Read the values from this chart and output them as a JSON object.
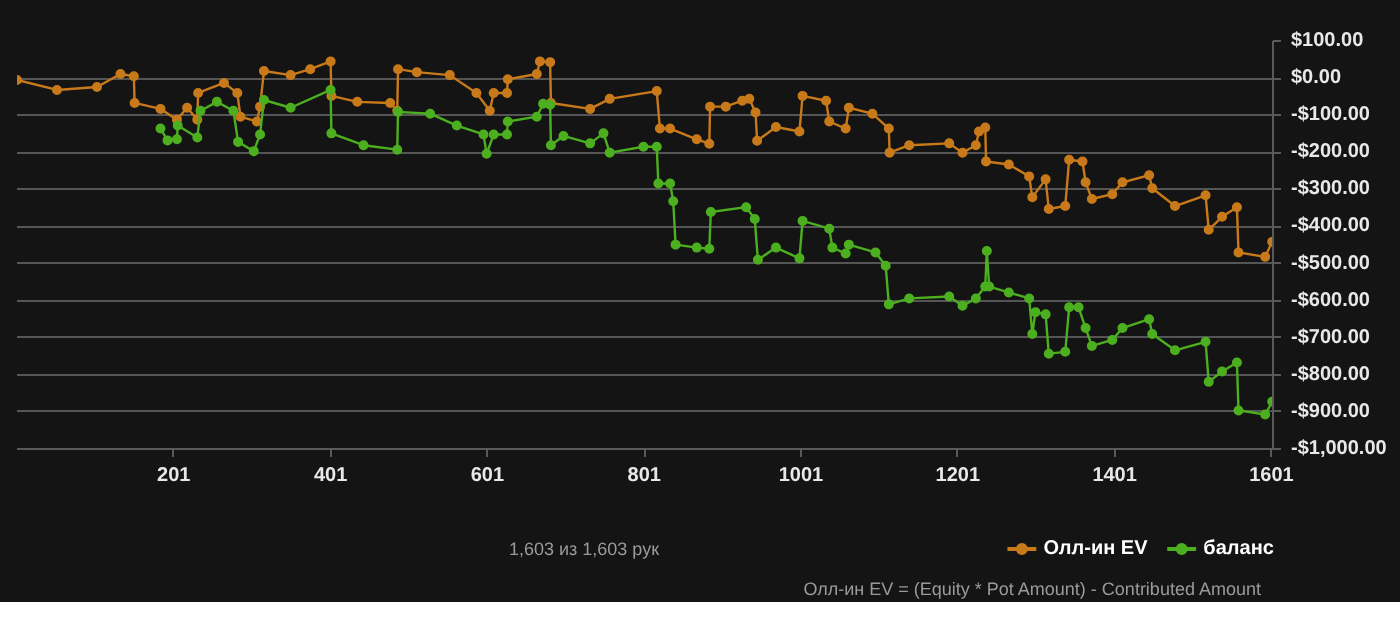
{
  "chart_data": {
    "type": "line",
    "marker": "circle",
    "legend": "bottom right",
    "grid": "y",
    "annotations": [
      "1,603 из 1,603 рук",
      "Олл-ин EV = (Equity * Pot Amount) - Contributed Amount"
    ],
    "xlim": [
      1,
      1603
    ],
    "xticks": [
      201,
      401,
      601,
      801,
      1001,
      1201,
      1401,
      1601
    ],
    "ylim": [
      -1000,
      100
    ],
    "yticks": [
      {
        "value": 100,
        "label": "$100.00"
      },
      {
        "value": 0,
        "label": "$0.00"
      },
      {
        "value": -100,
        "label": "-$100.00"
      },
      {
        "value": -200,
        "label": "-$200.00"
      },
      {
        "value": -300,
        "label": "-$300.00"
      },
      {
        "value": -400,
        "label": "-$400.00"
      },
      {
        "value": -500,
        "label": "-$500.00"
      },
      {
        "value": -600,
        "label": "-$600.00"
      },
      {
        "value": -700,
        "label": "-$700.00"
      },
      {
        "value": -800,
        "label": "-$800.00"
      },
      {
        "value": -900,
        "label": "-$900.00"
      },
      {
        "value": -1000,
        "label": "-$1,000.00"
      }
    ],
    "series": [
      {
        "name": "Олл-ин EV",
        "color": "#c87a1a",
        "x": [
          1,
          52,
          103,
          133,
          150,
          151,
          184,
          205,
          218,
          231,
          232,
          265,
          282,
          286,
          307,
          311,
          316,
          350,
          375,
          401,
          402,
          435,
          477,
          486,
          487,
          511,
          553,
          587,
          604,
          609,
          626,
          627,
          664,
          668,
          681,
          682,
          732,
          757,
          817,
          821,
          834,
          868,
          884,
          885,
          905,
          926,
          935,
          943,
          945,
          969,
          999,
          1003,
          1033,
          1037,
          1058,
          1062,
          1092,
          1113,
          1114,
          1139,
          1190,
          1207,
          1224,
          1228,
          1236,
          1237,
          1266,
          1292,
          1296,
          1313,
          1317,
          1338,
          1343,
          1360,
          1364,
          1372,
          1398,
          1411,
          1445,
          1449,
          1478,
          1517,
          1521,
          1538,
          1557,
          1559,
          1593,
          1602
        ],
        "values": [
          -5,
          -32,
          -24,
          11,
          5,
          -67,
          -83,
          -112,
          -80,
          -112,
          -40,
          -13,
          -40,
          -104,
          -117,
          -77,
          19,
          8,
          24,
          45,
          -48,
          -64,
          -67,
          -88,
          24,
          16,
          8,
          -40,
          -88,
          -40,
          -40,
          -3,
          11,
          45,
          43,
          -67,
          -83,
          -56,
          -35,
          -136,
          -136,
          -165,
          -177,
          -77,
          -77,
          -61,
          -56,
          -93,
          -169,
          -132,
          -144,
          -48,
          -61,
          -117,
          -136,
          -80,
          -96,
          -136,
          -201,
          -181,
          -176,
          -201,
          -181,
          -144,
          -133,
          -225,
          -233,
          -265,
          -321,
          -273,
          -353,
          -345,
          -220,
          -225,
          -281,
          -326,
          -313,
          -281,
          -262,
          -297,
          -345,
          -316,
          -409,
          -374,
          -348,
          -470,
          -482,
          -441
        ]
      },
      {
        "name": "баланс",
        "color": "#4caf1f",
        "x": [
          184,
          193,
          205,
          206,
          231,
          235,
          256,
          277,
          283,
          303,
          311,
          316,
          350,
          401,
          402,
          443,
          486,
          487,
          528,
          562,
          596,
          600,
          609,
          626,
          627,
          664,
          672,
          681,
          682,
          698,
          732,
          749,
          757,
          800,
          817,
          819,
          834,
          838,
          841,
          868,
          884,
          886,
          931,
          942,
          946,
          969,
          999,
          1003,
          1037,
          1041,
          1058,
          1062,
          1096,
          1109,
          1113,
          1139,
          1190,
          1207,
          1224,
          1236,
          1238,
          1241,
          1266,
          1292,
          1296,
          1300,
          1313,
          1317,
          1338,
          1343,
          1355,
          1364,
          1372,
          1398,
          1411,
          1445,
          1449,
          1478,
          1517,
          1521,
          1538,
          1557,
          1559,
          1593,
          1602
        ],
        "values": [
          -136,
          -168,
          -165,
          -128,
          -160,
          -88,
          -64,
          -88,
          -172,
          -197,
          -152,
          -59,
          -80,
          -32,
          -149,
          -181,
          -193,
          -91,
          -96,
          -128,
          -152,
          -204,
          -152,
          -152,
          -117,
          -104,
          -69,
          -72,
          -181,
          -156,
          -176,
          -149,
          -201,
          -185,
          -185,
          -284,
          -284,
          -332,
          -449,
          -457,
          -460,
          -361,
          -348,
          -380,
          -490,
          -457,
          -486,
          -385,
          -406,
          -457,
          -473,
          -449,
          -470,
          -506,
          -610,
          -594,
          -589,
          -614,
          -594,
          -562,
          -466,
          -562,
          -578,
          -594,
          -690,
          -631,
          -637,
          -743,
          -738,
          -618,
          -618,
          -674,
          -722,
          -706,
          -674,
          -650,
          -690,
          -734,
          -711,
          -819,
          -791,
          -767,
          -896,
          -907,
          -872
        ]
      }
    ]
  }
}
